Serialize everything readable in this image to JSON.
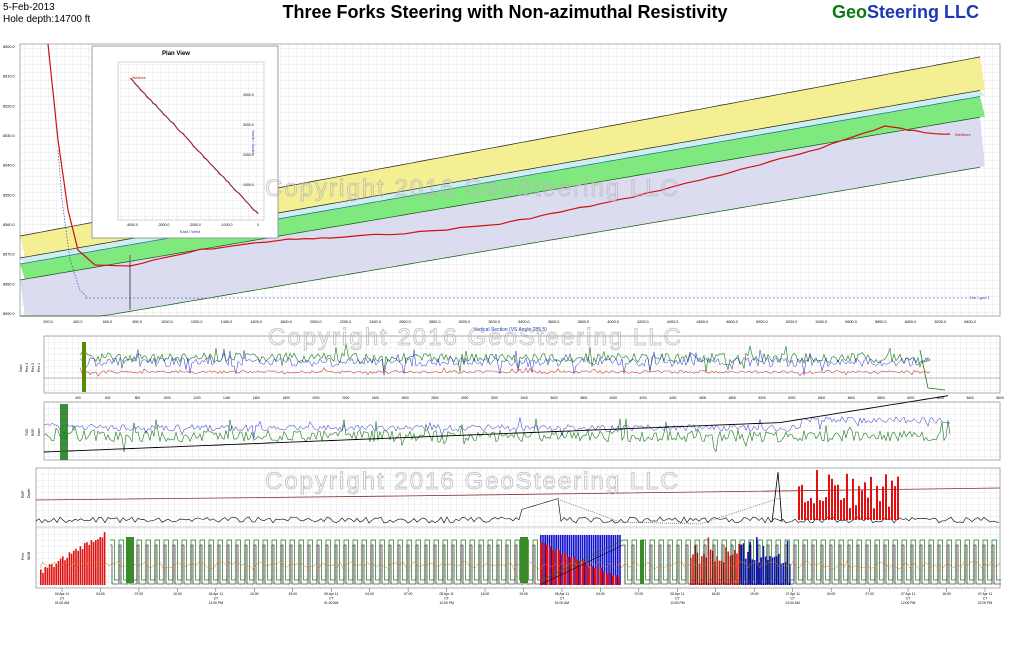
{
  "header": {
    "date": "5-Feb-2013",
    "hole_depth": "Hole depth:14700 ft",
    "title": "Three Forks Steering with Non-azimuthal Resistivity",
    "brand_part1": "Geo",
    "brand_part2": "Steering LLC"
  },
  "watermark": "Copyright 2016 GeoSteering LLC",
  "colors": {
    "yellow_zone": "#f3ef92",
    "cyan_zone": "#cfeef0",
    "green_zone": "#7fe87f",
    "lavender_zone": "#dcdcf0",
    "wellbore": "#d01010",
    "gamma_green": "#1a7a1a",
    "resistivity_blue": "#2a2ad0",
    "mud_red": "#e01010",
    "time_blue": "#1010d0"
  },
  "chart_data": [
    {
      "type": "line",
      "name": "cross-section",
      "xlabel": "Vertical Section (VS Angle 285.5)",
      "x_ticks": [
        "200.0",
        "400.0",
        "600.0",
        "800.0",
        "1000.0",
        "1200.0",
        "1400.0",
        "1600.0",
        "1800.0",
        "2000.0",
        "2200.0",
        "2400.0",
        "2600.0",
        "2800.0",
        "3000.0",
        "3200.0",
        "3400.0",
        "3600.0",
        "3800.0",
        "4000.0",
        "4200.0",
        "4400.0",
        "4600.0",
        "4800.0",
        "5000.0",
        "5200.0",
        "5400.0",
        "5600.0",
        "5800.0",
        "6000.0",
        "6200.0",
        "6400.0"
      ],
      "y_ticks": [
        "8500.0",
        "8510.0",
        "8520.0",
        "8530.0",
        "8540.0",
        "8550.0",
        "8560.0",
        "8570.0",
        "8580.0",
        "8590.0"
      ],
      "well_label": "Wellbore",
      "target_label": "Hor Lgnd 1"
    },
    {
      "type": "line",
      "name": "plan-view",
      "title": "Plan View",
      "xlabel": "East / West",
      "ylabel": "North / South",
      "x_ticks": [
        "-4000.0",
        "-3000.0",
        "-2000.0",
        "-1000.0",
        "0"
      ],
      "y_ticks": [
        "4000.0",
        "3000.0",
        "2000.0",
        "1000.0"
      ],
      "start_label": "Wellbore"
    },
    {
      "type": "line",
      "name": "log-strip-1",
      "y_labels": [
        "Res 1",
        "Res 2",
        "Res 3",
        "Gam"
      ],
      "x_ticks": [
        "400",
        "600",
        "800",
        "1000",
        "1200",
        "1400",
        "1600",
        "1800",
        "2000",
        "2200",
        "2400",
        "2600",
        "2800",
        "3000",
        "3200",
        "3400",
        "3600",
        "3800",
        "4000",
        "4200",
        "4400",
        "4600",
        "4800",
        "5000",
        "5200",
        "5400",
        "5600",
        "5800",
        "6000",
        "6200",
        "6400",
        "6600"
      ]
    },
    {
      "type": "line",
      "name": "log-strip-2",
      "y_labels": [
        "Gam",
        "ROP",
        "TVD"
      ]
    },
    {
      "type": "line",
      "name": "drilling-time-log",
      "y_labels": [
        "Depth",
        "ROP",
        "WOB",
        "Pres"
      ],
      "time_ticks": [
        {
          "date": "04 Apr 11",
          "zone": "CT",
          "time": "01:00 AM"
        },
        {
          "date": "",
          "zone": "",
          "time": "04:00"
        },
        {
          "date": "",
          "zone": "",
          "time": "07:00"
        },
        {
          "date": "",
          "zone": "",
          "time": "10:00"
        },
        {
          "date": "04 Apr 11",
          "zone": "CT",
          "time": "12:00 PM"
        },
        {
          "date": "",
          "zone": "",
          "time": "16:00"
        },
        {
          "date": "",
          "zone": "",
          "time": "19:00"
        },
        {
          "date": "05 Apr 11",
          "zone": "CT",
          "time": "01:00 AM"
        },
        {
          "date": "",
          "zone": "",
          "time": "04:00"
        },
        {
          "date": "",
          "zone": "",
          "time": "07:00"
        },
        {
          "date": "05 Apr 11",
          "zone": "CT",
          "time": "12:00 PM"
        },
        {
          "date": "",
          "zone": "",
          "time": "16:00"
        },
        {
          "date": "",
          "zone": "",
          "time": "19:00"
        },
        {
          "date": "06 Apr 11",
          "zone": "CT",
          "time": "01:00 AM"
        },
        {
          "date": "",
          "zone": "",
          "time": "04:00"
        },
        {
          "date": "",
          "zone": "",
          "time": "07:00"
        },
        {
          "date": "06 Apr 11",
          "zone": "CT",
          "time": "12:00 PM"
        },
        {
          "date": "",
          "zone": "",
          "time": "16:00"
        },
        {
          "date": "",
          "zone": "",
          "time": "19:00"
        },
        {
          "date": "07 Apr 11",
          "zone": "CT",
          "time": "01:00 AM"
        },
        {
          "date": "",
          "zone": "",
          "time": "04:00"
        },
        {
          "date": "",
          "zone": "",
          "time": "07:00"
        },
        {
          "date": "07 Apr 11",
          "zone": "CT",
          "time": "12:00 PM"
        },
        {
          "date": "",
          "zone": "",
          "time": "16:00"
        },
        {
          "date": "07 Apr 11",
          "zone": "CT",
          "time": "22:00 PM"
        }
      ]
    }
  ]
}
